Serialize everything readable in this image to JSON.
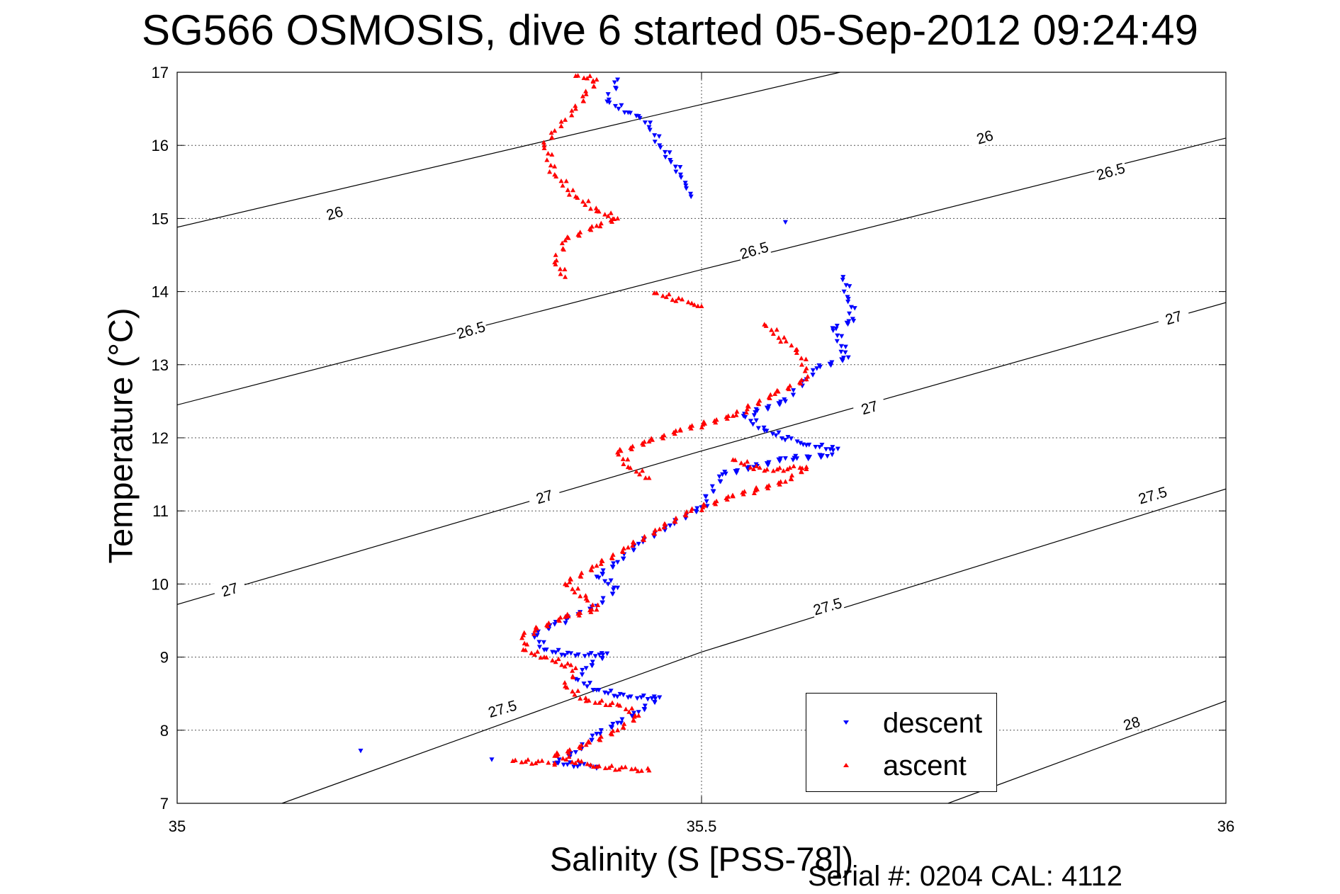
{
  "chart_data": {
    "type": "scatter",
    "title": "SG566 OSMOSIS, dive 6 started 05-Sep-2012 09:24:49",
    "xlabel": "Salinity (S [PSS-78])",
    "ylabel": "Temperature (°C)",
    "xlim": [
      35,
      36
    ],
    "ylim": [
      7,
      17
    ],
    "xticks": [
      "35",
      "35.5",
      "36"
    ],
    "yticks": [
      "7",
      "8",
      "9",
      "10",
      "11",
      "12",
      "13",
      "14",
      "15",
      "16",
      "17"
    ],
    "grid": true,
    "legend_position": "bottom-right",
    "footer": "Serial #: 0204  CAL: 4112",
    "contour_labels": {
      "c26": "26",
      "c26_5": "26.5",
      "c27": "27",
      "c27_5": "27.5",
      "c28": "28"
    },
    "density_contours": [
      {
        "level": 26,
        "points": [
          [
            35.0,
            14.88
          ],
          [
            35.5,
            16.56
          ],
          [
            35.632,
            17.0
          ]
        ]
      },
      {
        "level": 26.5,
        "points": [
          [
            35.0,
            12.45
          ],
          [
            35.5,
            14.3
          ],
          [
            36.0,
            16.1
          ]
        ]
      },
      {
        "level": 27,
        "points": [
          [
            35.0,
            9.72
          ],
          [
            35.5,
            11.82
          ],
          [
            36.0,
            13.85
          ]
        ]
      },
      {
        "level": 27.5,
        "points": [
          [
            35.1,
            7.0
          ],
          [
            35.5,
            9.07
          ],
          [
            36.0,
            11.3
          ]
        ]
      },
      {
        "level": 28,
        "points": [
          [
            35.735,
            7.0
          ],
          [
            36.0,
            8.4
          ]
        ]
      }
    ],
    "series": [
      {
        "name": "descent",
        "color": "#0000ff",
        "marker": "down-triangle",
        "points": [
          [
            35.42,
            16.9
          ],
          [
            35.41,
            16.6
          ],
          [
            35.43,
            16.45
          ],
          [
            35.44,
            16.4
          ],
          [
            35.45,
            16.25
          ],
          [
            35.46,
            16.0
          ],
          [
            35.47,
            15.8
          ],
          [
            35.48,
            15.6
          ],
          [
            35.485,
            15.45
          ],
          [
            35.49,
            15.3
          ],
          [
            35.58,
            14.95
          ],
          [
            35.635,
            14.2
          ],
          [
            35.64,
            13.9
          ],
          [
            35.645,
            13.6
          ],
          [
            35.625,
            13.5
          ],
          [
            35.64,
            13.1
          ],
          [
            35.61,
            12.95
          ],
          [
            35.6,
            12.8
          ],
          [
            35.58,
            12.5
          ],
          [
            35.54,
            12.3
          ],
          [
            35.56,
            12.1
          ],
          [
            35.6,
            11.9
          ],
          [
            35.63,
            11.85
          ],
          [
            35.62,
            11.75
          ],
          [
            35.58,
            11.72
          ],
          [
            35.55,
            11.6
          ],
          [
            35.52,
            11.5
          ],
          [
            35.5,
            11.05
          ],
          [
            35.47,
            10.8
          ],
          [
            35.44,
            10.55
          ],
          [
            35.42,
            10.3
          ],
          [
            35.4,
            10.1
          ],
          [
            35.42,
            9.95
          ],
          [
            35.4,
            9.7
          ],
          [
            35.36,
            9.45
          ],
          [
            35.34,
            9.3
          ],
          [
            35.35,
            9.1
          ],
          [
            35.38,
            9.02
          ],
          [
            35.41,
            9.05
          ],
          [
            35.39,
            8.85
          ],
          [
            35.38,
            8.7
          ],
          [
            35.4,
            8.55
          ],
          [
            35.43,
            8.45
          ],
          [
            35.46,
            8.45
          ],
          [
            35.44,
            8.25
          ],
          [
            35.42,
            8.1
          ],
          [
            35.4,
            7.95
          ],
          [
            35.38,
            7.7
          ],
          [
            35.36,
            7.55
          ],
          [
            35.4,
            7.5
          ],
          [
            35.175,
            7.72
          ],
          [
            35.3,
            7.6
          ]
        ]
      },
      {
        "name": "ascent",
        "color": "#ff0000",
        "marker": "up-triangle",
        "points": [
          [
            35.38,
            16.95
          ],
          [
            35.4,
            16.9
          ],
          [
            35.39,
            16.7
          ],
          [
            35.38,
            16.5
          ],
          [
            35.37,
            16.35
          ],
          [
            35.36,
            16.2
          ],
          [
            35.35,
            16.0
          ],
          [
            35.36,
            15.6
          ],
          [
            35.38,
            15.3
          ],
          [
            35.4,
            15.1
          ],
          [
            35.42,
            15.0
          ],
          [
            35.4,
            14.9
          ],
          [
            35.37,
            14.7
          ],
          [
            35.36,
            14.4
          ],
          [
            35.37,
            14.2
          ],
          [
            35.455,
            13.98
          ],
          [
            35.5,
            13.8
          ],
          [
            35.56,
            13.55
          ],
          [
            35.59,
            13.2
          ],
          [
            35.6,
            12.95
          ],
          [
            35.6,
            12.8
          ],
          [
            35.57,
            12.6
          ],
          [
            35.53,
            12.3
          ],
          [
            35.48,
            12.1
          ],
          [
            35.45,
            11.95
          ],
          [
            35.42,
            11.8
          ],
          [
            35.43,
            11.6
          ],
          [
            35.45,
            11.45
          ],
          [
            35.53,
            11.7
          ],
          [
            35.56,
            11.55
          ],
          [
            35.6,
            11.6
          ],
          [
            35.58,
            11.4
          ],
          [
            35.53,
            11.2
          ],
          [
            35.49,
            11.0
          ],
          [
            35.46,
            10.75
          ],
          [
            35.43,
            10.5
          ],
          [
            35.4,
            10.25
          ],
          [
            35.37,
            10.0
          ],
          [
            35.39,
            9.8
          ],
          [
            35.4,
            9.65
          ],
          [
            35.37,
            9.55
          ],
          [
            35.33,
            9.3
          ],
          [
            35.33,
            9.1
          ],
          [
            35.35,
            9.0
          ],
          [
            35.38,
            8.85
          ],
          [
            35.37,
            8.6
          ],
          [
            35.39,
            8.4
          ],
          [
            35.42,
            8.35
          ],
          [
            35.44,
            8.2
          ],
          [
            35.42,
            8.0
          ],
          [
            35.39,
            7.8
          ],
          [
            35.36,
            7.65
          ],
          [
            35.4,
            7.5
          ],
          [
            35.45,
            7.45
          ],
          [
            35.32,
            7.58
          ],
          [
            35.36,
            7.55
          ]
        ]
      }
    ]
  }
}
